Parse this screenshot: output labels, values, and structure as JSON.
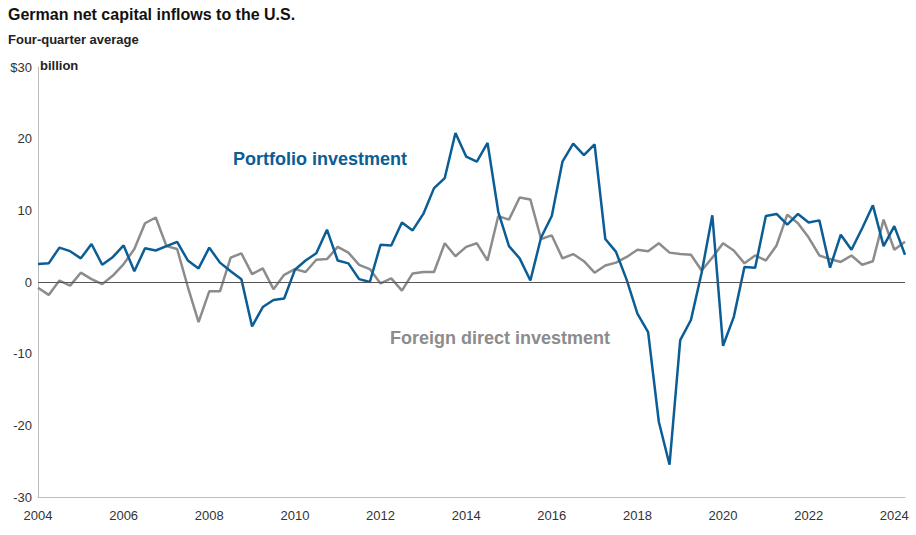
{
  "chart_data": {
    "type": "line",
    "title": "German net capital inflows to the U.S.",
    "subtitle": "Four-quarter average",
    "ylabel": "billion",
    "x": [
      2004,
      2004.25,
      2004.5,
      2004.75,
      2005,
      2005.25,
      2005.5,
      2005.75,
      2006,
      2006.25,
      2006.5,
      2006.75,
      2007,
      2007.25,
      2007.5,
      2007.75,
      2008,
      2008.25,
      2008.5,
      2008.75,
      2009,
      2009.25,
      2009.5,
      2009.75,
      2010,
      2010.25,
      2010.5,
      2010.75,
      2011,
      2011.25,
      2011.5,
      2011.75,
      2012,
      2012.25,
      2012.5,
      2012.75,
      2013,
      2013.25,
      2013.5,
      2013.75,
      2014,
      2014.25,
      2014.5,
      2014.75,
      2015,
      2015.25,
      2015.5,
      2015.75,
      2016,
      2016.25,
      2016.5,
      2016.75,
      2017,
      2017.25,
      2017.5,
      2017.75,
      2018,
      2018.25,
      2018.5,
      2018.75,
      2019,
      2019.25,
      2019.5,
      2019.75,
      2020,
      2020.25,
      2020.5,
      2020.75,
      2021,
      2021.25,
      2021.5,
      2021.75,
      2022,
      2022.25,
      2022.5,
      2022.75,
      2023,
      2023.25,
      2023.5,
      2023.75,
      2024,
      2024.25
    ],
    "xlim": [
      2004,
      2024.25
    ],
    "xticks": [
      2004,
      2006,
      2008,
      2010,
      2012,
      2014,
      2016,
      2018,
      2020,
      2022,
      2024
    ],
    "ylim": [
      -30,
      30
    ],
    "yticks": [
      -30,
      -20,
      -10,
      0,
      10,
      20,
      {
        "value": 30,
        "label": "$30"
      }
    ],
    "grid": false,
    "series": [
      {
        "name": "Portfolio investment",
        "color": "#0b5d96",
        "values": [
          2.5,
          2.6,
          4.8,
          4.3,
          3.3,
          5.3,
          2.4,
          3.5,
          5.1,
          1.5,
          4.7,
          4.4,
          5.0,
          5.6,
          3.0,
          1.9,
          4.8,
          2.7,
          1.5,
          0.4,
          -6.2,
          -3.5,
          -2.5,
          -2.3,
          1.7,
          3.0,
          4.0,
          7.3,
          3.0,
          2.6,
          0.4,
          0.0,
          5.2,
          5.1,
          8.3,
          7.2,
          9.5,
          13.1,
          14.5,
          20.8,
          17.5,
          16.8,
          19.4,
          9.8,
          5.0,
          3.3,
          0.2,
          6.2,
          9.2,
          16.8,
          19.3,
          17.7,
          19.2,
          6.0,
          4.2,
          0.3,
          -4.4,
          -7.0,
          -19.5,
          -25.5,
          -8.1,
          -5.3,
          1.3,
          9.3,
          -8.9,
          -4.9,
          2.1,
          2.0,
          9.2,
          9.5,
          8.0,
          9.5,
          8.3,
          8.6,
          2.0,
          6.6,
          4.5,
          7.5,
          10.7,
          5.0,
          7.8,
          3.8
        ]
      },
      {
        "name": "Foreign direct investment",
        "color": "#8c8c8c",
        "values": [
          -0.8,
          -1.8,
          0.2,
          -0.5,
          1.3,
          0.4,
          -0.3,
          0.9,
          2.5,
          4.6,
          8.2,
          9.0,
          5.0,
          4.6,
          -0.7,
          -5.6,
          -1.3,
          -1.3,
          3.4,
          4.0,
          1.1,
          1.9,
          -1.0,
          1.0,
          1.8,
          1.4,
          3.1,
          3.2,
          4.9,
          4.1,
          2.4,
          1.8,
          -0.2,
          0.5,
          -1.2,
          1.2,
          1.4,
          1.4,
          5.4,
          3.6,
          4.9,
          5.4,
          3.0,
          9.2,
          8.7,
          11.8,
          11.5,
          6.0,
          6.5,
          3.3,
          3.9,
          2.9,
          1.3,
          2.3,
          2.7,
          3.5,
          4.5,
          4.3,
          5.4,
          4.1,
          3.9,
          3.8,
          1.6,
          3.4,
          5.4,
          4.4,
          2.6,
          3.7,
          3.0,
          5.1,
          9.4,
          8.2,
          6.2,
          3.7,
          3.2,
          2.8,
          3.7,
          2.4,
          2.9,
          8.7,
          4.5,
          5.6
        ]
      }
    ]
  }
}
